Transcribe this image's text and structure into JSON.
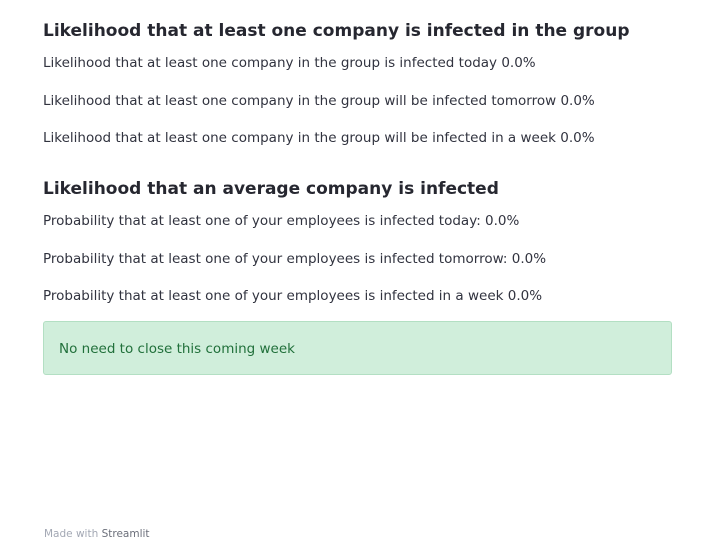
{
  "group_section": {
    "heading": "Likelihood that at least one company is infected in the group",
    "lines": [
      "Likelihood that at least one company in the group is infected today 0.0%",
      "Likelihood that at least one company in the group will be infected tomorrow 0.0%",
      "Likelihood that at least one company in the group will be infected in a week 0.0%"
    ]
  },
  "average_section": {
    "heading": "Likelihood that an average company is infected",
    "lines": [
      "Probability that at least one of your employees is infected today: 0.0%",
      "Probability that at least one of your employees is infected tomorrow: 0.0%",
      "Probability that at least one of your employees is infected in a week 0.0%"
    ]
  },
  "alert": {
    "message": "No need to close this coming week",
    "color": "#21703b",
    "background": "#d0eedb"
  },
  "footer": {
    "prefix": "Made with",
    "brand": "Streamlit"
  }
}
